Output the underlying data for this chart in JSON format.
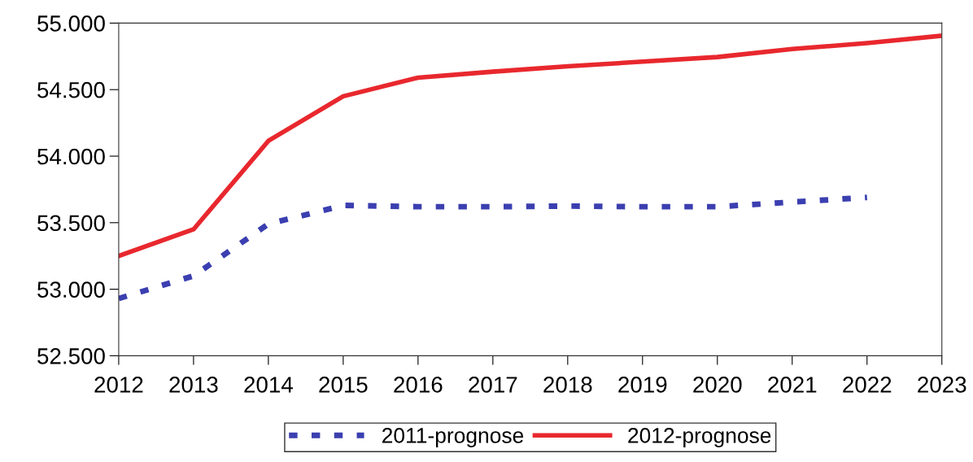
{
  "chart_data": {
    "type": "line",
    "x": [
      2012,
      2013,
      2014,
      2015,
      2016,
      2017,
      2018,
      2019,
      2020,
      2021,
      2022,
      2023
    ],
    "series": [
      {
        "name": "2011-prognose",
        "color": "#3b3fb0",
        "line_style": "dashed",
        "values": [
          52930,
          53100,
          53490,
          53630,
          53620,
          53620,
          53625,
          53620,
          53620,
          53655,
          53690,
          null
        ]
      },
      {
        "name": "2012-prognose",
        "color": "#e8282e",
        "line_style": "solid",
        "values": [
          53250,
          53450,
          54115,
          54450,
          54590,
          54635,
          54675,
          54710,
          54745,
          54805,
          54850,
          54905
        ]
      }
    ],
    "xlim": [
      2012,
      2023
    ],
    "xticks": [
      2012,
      2013,
      2014,
      2015,
      2016,
      2017,
      2018,
      2019,
      2020,
      2021,
      2022,
      2023
    ],
    "ylim": [
      52500,
      55000
    ],
    "yticks": [
      {
        "value": 52500,
        "label": "52.500"
      },
      {
        "value": 53000,
        "label": "53.000"
      },
      {
        "value": 53500,
        "label": "53.500"
      },
      {
        "value": 54000,
        "label": "54.000"
      },
      {
        "value": 54500,
        "label": "54.500"
      },
      {
        "value": 55000,
        "label": "55.000"
      }
    ],
    "grid": false,
    "legend": "bottom",
    "marker": "none"
  }
}
